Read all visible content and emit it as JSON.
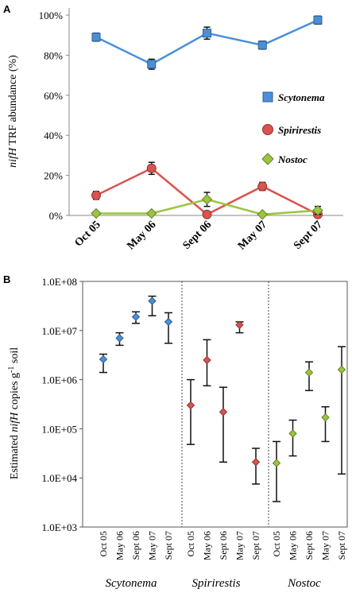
{
  "chart_data": [
    {
      "type": "line",
      "panel_label": "A",
      "ylabel_italic": "nifH",
      "ylabel_rest": " TRF abundance (%)",
      "xlabel": "",
      "categories": [
        "Oct 05",
        "May 06",
        "Sept 06",
        "May 07",
        "Sept 07"
      ],
      "ylim": [
        0,
        100
      ],
      "y_ticks": [
        "0%",
        "20%",
        "40%",
        "60%",
        "80%",
        "100%"
      ],
      "legend_position": "right",
      "series": [
        {
          "name": "Scytonema",
          "values": [
            89,
            75.5,
            91,
            85,
            97.5
          ],
          "err": [
            2,
            2.5,
            3,
            2,
            2
          ],
          "color": "#4a90d9",
          "marker": "square"
        },
        {
          "name": "Spirirestis",
          "values": [
            10,
            23.5,
            0.5,
            14.5,
            0.5
          ],
          "err": [
            2,
            3,
            1,
            2,
            1
          ],
          "color": "#d9534f",
          "marker": "circle"
        },
        {
          "name": "Nostoc",
          "values": [
            1,
            1,
            8,
            0.5,
            2.5
          ],
          "err": [
            0.5,
            0.5,
            3.5,
            0.5,
            2
          ],
          "color": "#9bc53d",
          "marker": "diamond"
        }
      ]
    },
    {
      "type": "scatter",
      "panel_label": "B",
      "ylabel_pre": "Estimated ",
      "ylabel_italic": "nifH",
      "ylabel_post": " copies g",
      "ylabel_sup": "-1",
      "ylabel_end": " soil",
      "y_scale": "log",
      "ylim": [
        1000,
        100000000
      ],
      "y_ticks": [
        "1.0E+03",
        "1.0E+04",
        "1.0E+05",
        "1.0E+06",
        "1.0E+07",
        "1.0E+08"
      ],
      "groups": [
        {
          "name": "Scytonema",
          "color": "#4a90d9",
          "categories": [
            "Oct 05",
            "May 06",
            "Sept 06",
            "May 07",
            "Sept 07"
          ],
          "values": [
            2600000,
            7000000,
            19000000,
            40000000,
            15000000
          ],
          "lo": [
            1400000,
            5000000,
            14000000,
            20000000,
            5500000
          ],
          "hi": [
            3300000,
            9000000,
            24000000,
            50000000,
            23000000
          ]
        },
        {
          "name": "Spirirestis",
          "color": "#d9534f",
          "categories": [
            "Oct 05",
            "May 06",
            "Sept 06",
            "May 07",
            "Sept 07"
          ],
          "values": [
            300000,
            2500000,
            220000,
            13000000,
            21000
          ],
          "lo": [
            48000,
            750000,
            21000,
            9000000,
            7500
          ],
          "hi": [
            1000000,
            6500000,
            700000,
            15000000,
            40000
          ]
        },
        {
          "name": "Nostoc",
          "color": "#9bc53d",
          "categories": [
            "Oct 05",
            "May 06",
            "Sept 06",
            "May 07",
            "Sept 07"
          ],
          "values": [
            20000,
            80000,
            1400000,
            170000,
            1600000
          ],
          "lo": [
            3300,
            28000,
            600000,
            55000,
            12000
          ],
          "hi": [
            55000,
            150000,
            2300000,
            280000,
            4700000
          ]
        }
      ]
    }
  ]
}
